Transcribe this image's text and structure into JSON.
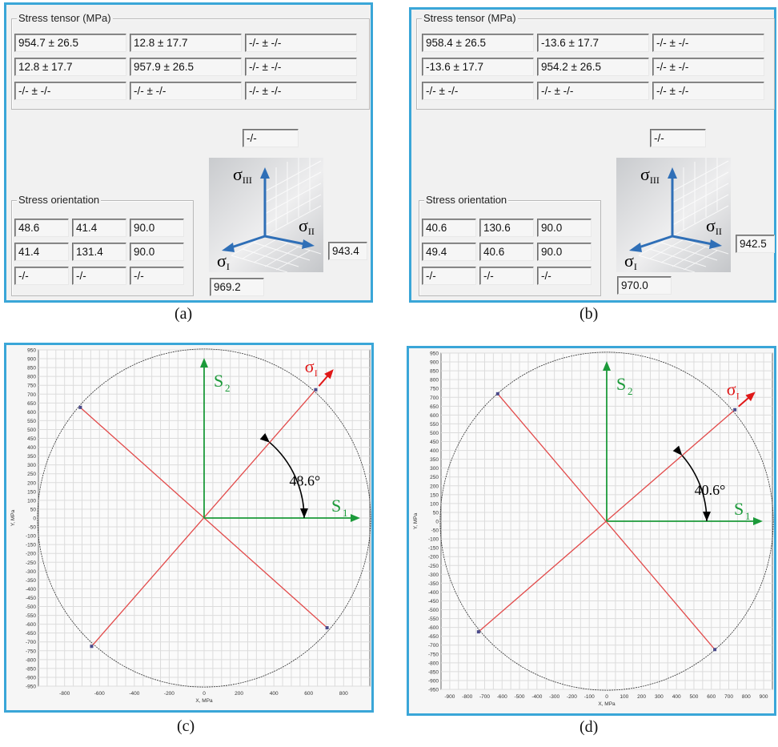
{
  "panels": [
    {
      "caption": "(a)",
      "tensor_title": "Stress tensor (MPa)",
      "tensor": [
        [
          "954.7 ± 26.5",
          "12.8 ± 17.7",
          "-/- ± -/-"
        ],
        [
          "12.8 ± 17.7",
          "957.9 ± 26.5",
          "-/- ± -/-"
        ],
        [
          "-/- ± -/-",
          "-/- ± -/-",
          "-/- ± -/-"
        ]
      ],
      "s3_value": "-/-",
      "orientation_title": "Stress orientation",
      "orientation": [
        [
          "48.6",
          "41.4",
          "90.0"
        ],
        [
          "41.4",
          "131.4",
          "90.0"
        ],
        [
          "-/-",
          "-/-",
          "-/-"
        ]
      ],
      "s2_value": "943.4",
      "s1_value": "969.2"
    },
    {
      "caption": "(b)",
      "tensor_title": "Stress tensor (MPa)",
      "tensor": [
        [
          "958.4 ± 26.5",
          "-13.6 ± 17.7",
          "-/- ± -/-"
        ],
        [
          "-13.6 ± 17.7",
          "954.2 ± 26.5",
          "-/- ± -/-"
        ],
        [
          "-/- ± -/-",
          "-/- ± -/-",
          "-/- ± -/-"
        ]
      ],
      "s3_value": "-/-",
      "orientation_title": "Stress orientation",
      "orientation": [
        [
          "40.6",
          "130.6",
          "90.0"
        ],
        [
          "49.4",
          "40.6",
          "90.0"
        ],
        [
          "-/-",
          "-/-",
          "-/-"
        ]
      ],
      "s2_value": "942.5",
      "s1_value": "970.0"
    }
  ],
  "axis_labels": {
    "s3": "σIII",
    "s2": "σII",
    "s1": "σI"
  },
  "accent_color": "#3aa6d8",
  "chart_data": [
    {
      "type": "scatter",
      "caption": "(c)",
      "xlabel": "X, MPa",
      "ylabel": "Y, MPa",
      "xlim": [
        -950,
        950
      ],
      "ylim": [
        -950,
        950
      ],
      "x_ticks": [
        -800,
        -600,
        -400,
        -200,
        0,
        200,
        400,
        600,
        800
      ],
      "y_ticks": [
        950,
        900,
        850,
        800,
        750,
        700,
        650,
        600,
        550,
        500,
        450,
        400,
        350,
        300,
        250,
        200,
        150,
        100,
        50,
        0,
        -50,
        -100,
        -150,
        -200,
        -250,
        -300,
        -350,
        -400,
        -450,
        -500,
        -550,
        -600,
        -650,
        -700,
        -750,
        -800,
        -850,
        -900,
        -950
      ],
      "circle_radius": 955,
      "points": [
        {
          "x": 640,
          "y": 725
        },
        {
          "x": -710,
          "y": 625
        },
        {
          "x": 705,
          "y": -620
        },
        {
          "x": -645,
          "y": -725
        }
      ],
      "angle_label": "48.6°",
      "s1_label": "S1",
      "s2_label": "S2",
      "sigma_label": "σI"
    },
    {
      "type": "scatter",
      "caption": "(d)",
      "xlabel": "X, MPa",
      "ylabel": "Y, MPa",
      "xlim": [
        -950,
        950
      ],
      "ylim": [
        -950,
        950
      ],
      "x_ticks": [
        -900,
        -800,
        -700,
        -600,
        -500,
        -400,
        -300,
        -200,
        -100,
        0,
        100,
        200,
        300,
        400,
        500,
        600,
        700,
        800,
        900
      ],
      "y_ticks": [
        950,
        900,
        850,
        800,
        750,
        700,
        650,
        600,
        550,
        500,
        450,
        400,
        350,
        300,
        250,
        200,
        150,
        100,
        50,
        0,
        -50,
        -100,
        -150,
        -200,
        -250,
        -300,
        -350,
        -400,
        -450,
        -500,
        -550,
        -600,
        -650,
        -700,
        -750,
        -800,
        -850,
        -900,
        -950
      ],
      "circle_radius": 955,
      "points": [
        {
          "x": 735,
          "y": 630
        },
        {
          "x": -625,
          "y": 720
        },
        {
          "x": 620,
          "y": -725
        },
        {
          "x": -735,
          "y": -625
        }
      ],
      "angle_label": "40.6°",
      "s1_label": "S1",
      "s2_label": "S2",
      "sigma_label": "σI"
    }
  ]
}
